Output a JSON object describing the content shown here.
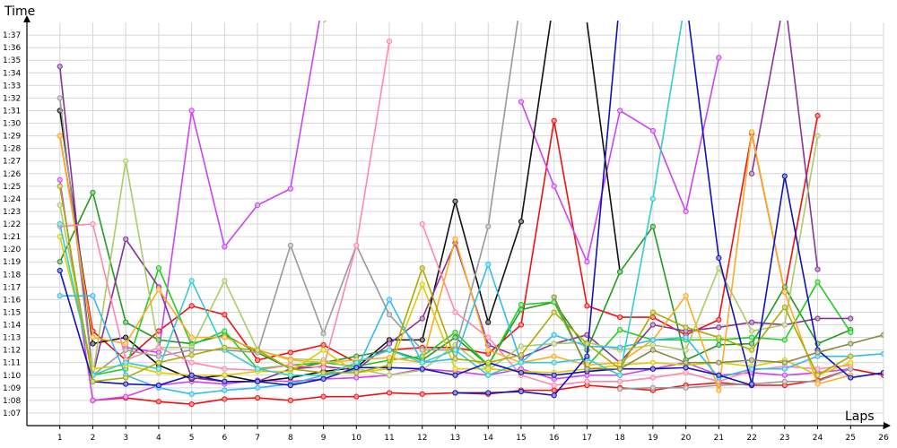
{
  "chart_data": {
    "type": "line",
    "xlabel": "Laps",
    "ylabel": "Time",
    "x": [
      1,
      2,
      3,
      4,
      5,
      6,
      7,
      8,
      9,
      10,
      11,
      12,
      13,
      14,
      15,
      16,
      17,
      18,
      19,
      20,
      21,
      22,
      23,
      24,
      25,
      26
    ],
    "xlim": [
      0,
      26
    ],
    "ylim": [
      "1:06",
      "1:38"
    ],
    "y_ticks": [
      "1:07",
      "1:08",
      "1:09",
      "1:10",
      "1:11",
      "1:12",
      "1:13",
      "1:14",
      "1:15",
      "1:16",
      "1:17",
      "1:18",
      "1:19",
      "1:20",
      "1:21",
      "1:22",
      "1:23",
      "1:24",
      "1:25",
      "1:26",
      "1:27",
      "1:28",
      "1:29",
      "1:30",
      "1:31",
      "1:32",
      "1:33",
      "1:34",
      "1:35",
      "1:36",
      "1:37"
    ],
    "grid": true,
    "legend": "none",
    "series": [
      {
        "color": "#ee1111",
        "values": [
          89.0,
          73.5,
          71.2,
          73.5,
          75.5,
          74.8,
          71.2,
          71.8,
          72.4,
          71.0,
          72.0,
          72.2,
          72.2,
          71.7,
          74.0,
          90.2,
          75.5,
          74.6,
          74.6,
          73.2,
          74.4,
          89.2,
          76.6,
          90.6,
          null,
          null
        ]
      },
      {
        "color": "#ee1111",
        "values": [
          null,
          68.0,
          68.2,
          67.9,
          67.7,
          68.1,
          68.2,
          68.0,
          68.3,
          68.3,
          68.6,
          68.5,
          68.6,
          68.5,
          68.8,
          68.8,
          69.2,
          69.0,
          68.8,
          69.2,
          69.4,
          69.2,
          69.2,
          69.6,
          70.5,
          70.0
        ]
      },
      {
        "color": "#cc44ee",
        "values": [
          null,
          null,
          null,
          null,
          null,
          80.2,
          83.5,
          84.8,
          100.0,
          null,
          null,
          null,
          null,
          null,
          null,
          null,
          null,
          null,
          null,
          null,
          null,
          null,
          null,
          null,
          null,
          null
        ]
      },
      {
        "color": "#cc44ee",
        "values": [
          null,
          null,
          72.2,
          71.8,
          91.0,
          80.2,
          null,
          null,
          null,
          null,
          null,
          null,
          null,
          null,
          91.7,
          85.0,
          79.0,
          91.0,
          89.4,
          83.0,
          95.2,
          null,
          null,
          null,
          null,
          null
        ]
      },
      {
        "color": "#cc44ee",
        "values": [
          85.5,
          68.0,
          68.3,
          69.2,
          69.5,
          69.3,
          69.6,
          69.5,
          69.7,
          69.8,
          70.0,
          70.5,
          70.3,
          70.0,
          70.5,
          69.7,
          70.0,
          70.0,
          70.5,
          71.0,
          70.0,
          70.2,
          70.0,
          70.2,
          70.5,
          null
        ]
      },
      {
        "color": "#111111",
        "values": [
          91.0,
          72.5,
          73.0,
          70.8,
          69.7,
          70.0,
          69.5,
          69.8,
          70.3,
          70.6,
          72.8,
          72.8,
          83.8,
          74.2,
          82.2,
          100.0,
          null,
          null,
          null,
          null,
          null,
          null,
          null,
          null,
          null,
          null
        ]
      },
      {
        "color": "#111111",
        "values": [
          null,
          null,
          null,
          null,
          null,
          null,
          null,
          null,
          null,
          null,
          null,
          null,
          null,
          null,
          null,
          null,
          98.0,
          78.2,
          null,
          null,
          null,
          null,
          null,
          null,
          null,
          null
        ]
      },
      {
        "color": "#229922",
        "values": [
          79.0,
          84.5,
          74.2,
          72.8,
          72.5,
          73.2,
          71.8,
          70.5,
          71.0,
          71.5,
          72.0,
          71.2,
          73.0,
          70.8,
          75.2,
          75.8,
          72.0,
          78.2,
          81.8,
          71.2,
          72.4,
          72.5,
          77.0,
          72.5,
          73.6,
          null
        ]
      },
      {
        "color": "#22cc22",
        "values": [
          null,
          70.0,
          70.5,
          78.5,
          72.4,
          73.5,
          70.5,
          70.8,
          71.0,
          70.7,
          71.2,
          71.5,
          73.4,
          70.8,
          75.6,
          75.8,
          70.7,
          73.6,
          72.8,
          72.8,
          72.8,
          73.0,
          72.8,
          77.4,
          73.4,
          null
        ]
      },
      {
        "color": "#883399",
        "values": [
          94.5,
          70.0,
          80.8,
          77.0,
          69.8,
          69.5,
          69.5,
          70.5,
          70.7,
          70.4,
          72.5,
          74.5,
          80.5,
          72.4,
          71.4,
          72.5,
          73.2,
          71.0,
          74.0,
          73.5,
          73.8,
          74.2,
          74.0,
          74.5,
          74.5,
          null
        ]
      },
      {
        "color": "#883399",
        "values": [
          null,
          null,
          null,
          null,
          null,
          null,
          null,
          null,
          null,
          null,
          null,
          null,
          null,
          null,
          null,
          null,
          null,
          null,
          null,
          null,
          null,
          86.0,
          100.0,
          null,
          null,
          null
        ]
      },
      {
        "color": "#883399",
        "values": [
          null,
          null,
          null,
          null,
          null,
          null,
          null,
          null,
          null,
          null,
          null,
          null,
          null,
          null,
          null,
          null,
          null,
          null,
          null,
          null,
          null,
          null,
          100.0,
          78.4,
          null,
          null
        ]
      },
      {
        "color": "#aacc66",
        "values": [
          83.5,
          70.0,
          87.0,
          72.2,
          72.2,
          77.5,
          72.0,
          71.3,
          71.2,
          70.5,
          70.0,
          70.4,
          72.4,
          70.4,
          72.3,
          72.5,
          72.6,
          72.0,
          72.4,
          72.0,
          78.5,
          73.5,
          74.0,
          89.0,
          null,
          null
        ]
      },
      {
        "color": "#aacc66",
        "values": [
          null,
          null,
          null,
          null,
          null,
          null,
          null,
          null,
          98.0,
          100.0,
          null,
          null,
          null,
          null,
          null,
          null,
          null,
          null,
          null,
          null,
          null,
          null,
          null,
          null,
          null,
          null
        ]
      },
      {
        "color": "#999999",
        "values": [
          92.0,
          70.0,
          72.0,
          71.5,
          72.0,
          72.0,
          71.8,
          80.3,
          73.3,
          80.3,
          74.8,
          72.0,
          72.0,
          81.8,
          100.0,
          null,
          null,
          null,
          null,
          null,
          null,
          null,
          null,
          null,
          null,
          null
        ]
      },
      {
        "color": "#999999",
        "values": [
          null,
          null,
          null,
          null,
          null,
          null,
          null,
          null,
          null,
          null,
          null,
          null,
          null,
          null,
          null,
          null,
          null,
          68.9,
          69.0,
          69.0,
          69.2,
          69.3,
          69.5,
          69.5,
          70.5,
          null
        ]
      },
      {
        "color": "#ff88aa",
        "values": [
          81.8,
          82.0,
          71.2,
          72.2,
          71.0,
          70.5,
          70.4,
          70.8,
          70.6,
          80.3,
          96.5,
          null,
          null,
          null,
          null,
          null,
          null,
          null,
          null,
          null,
          null,
          null,
          null,
          null,
          null,
          null
        ]
      },
      {
        "color": "#ff88aa",
        "values": [
          null,
          null,
          null,
          null,
          null,
          null,
          null,
          null,
          null,
          null,
          null,
          82.0,
          75.0,
          73.0,
          70.0,
          69.2,
          69.5,
          69.5,
          69.8,
          70.2,
          69.5,
          70.4,
          70.7,
          70.5,
          70.8,
          null
        ]
      },
      {
        "color": "#ffaa22",
        "values": [
          89.0,
          73.0,
          72.5,
          76.8,
          73.0,
          73.0,
          72.0,
          71.2,
          71.0,
          71.2,
          71.4,
          71.0,
          80.8,
          72.0,
          71.0,
          71.5,
          70.8,
          71.0,
          72.8,
          76.3,
          68.8,
          89.3,
          76.6,
          69.3,
          70.0,
          null
        ]
      },
      {
        "color": "#ddcc00",
        "values": [
          81.0,
          70.5,
          70.8,
          70.2,
          70.0,
          70.0,
          70.3,
          70.3,
          72.0,
          70.2,
          70.5,
          77.2,
          70.5,
          70.5,
          70.3,
          70.2,
          70.5,
          70.8,
          71.0,
          70.8,
          71.0,
          70.7,
          71.2,
          70.0,
          71.0,
          null
        ]
      },
      {
        "color": "#33bbee",
        "values": [
          76.3,
          76.3,
          70.0,
          69.0,
          68.5,
          68.8,
          69.0,
          69.3,
          70.0,
          70.4,
          76.0,
          71.0,
          71.3,
          78.8,
          71.0,
          73.2,
          72.3,
          72.2,
          72.8,
          73.0,
          69.8,
          70.5,
          70.5,
          71.5,
          71.5,
          71.7
        ]
      },
      {
        "color": "#33cccc",
        "values": [
          82.0,
          70.0,
          71.0,
          70.5,
          77.5,
          72.0,
          70.5,
          70.0,
          70.0,
          71.0,
          72.0,
          71.0,
          72.0,
          70.0,
          71.0,
          71.0,
          71.3,
          70.0,
          84.0,
          100.0,
          null,
          null,
          null,
          null,
          null,
          null
        ]
      },
      {
        "color": "#1111bb",
        "values": [
          78.3,
          69.5,
          69.3,
          69.2,
          70.0,
          69.5,
          69.5,
          69.2,
          69.7,
          70.6,
          70.6,
          70.5,
          70.0,
          71.0,
          70.2,
          70.0,
          70.3,
          70.5,
          70.5,
          70.6,
          70.0,
          69.2,
          85.8,
          72.0,
          69.8,
          70.2
        ]
      },
      {
        "color": "#1111bb",
        "values": [
          null,
          null,
          null,
          null,
          null,
          null,
          null,
          null,
          null,
          null,
          null,
          null,
          68.6,
          68.6,
          68.7,
          68.4,
          71.5,
          100.0,
          null,
          null,
          null,
          null,
          null,
          null,
          null,
          null
        ]
      },
      {
        "color": "#1111bb",
        "values": [
          null,
          null,
          null,
          null,
          null,
          null,
          null,
          null,
          null,
          null,
          null,
          null,
          null,
          null,
          null,
          null,
          null,
          null,
          null,
          100.0,
          79.3,
          69.3,
          null,
          null,
          null,
          null
        ]
      },
      {
        "color": "#aaaa00",
        "values": [
          85.0,
          69.5,
          69.8,
          71.0,
          71.6,
          72.2,
          72.0,
          70.5,
          70.2,
          70.2,
          70.8,
          78.5,
          71.3,
          71.0,
          71.6,
          75.0,
          72.5,
          70.5,
          75.0,
          73.8,
          73.0,
          72.0,
          75.4,
          70.0,
          71.5,
          null
        ]
      },
      {
        "color": "#888844",
        "values": [
          null,
          null,
          null,
          null,
          null,
          null,
          null,
          null,
          null,
          null,
          null,
          null,
          null,
          null,
          null,
          76.2,
          70.5,
          70.5,
          72.0,
          71.0,
          71.0,
          71.2,
          71.0,
          71.8,
          72.5,
          73.2
        ]
      }
    ]
  }
}
